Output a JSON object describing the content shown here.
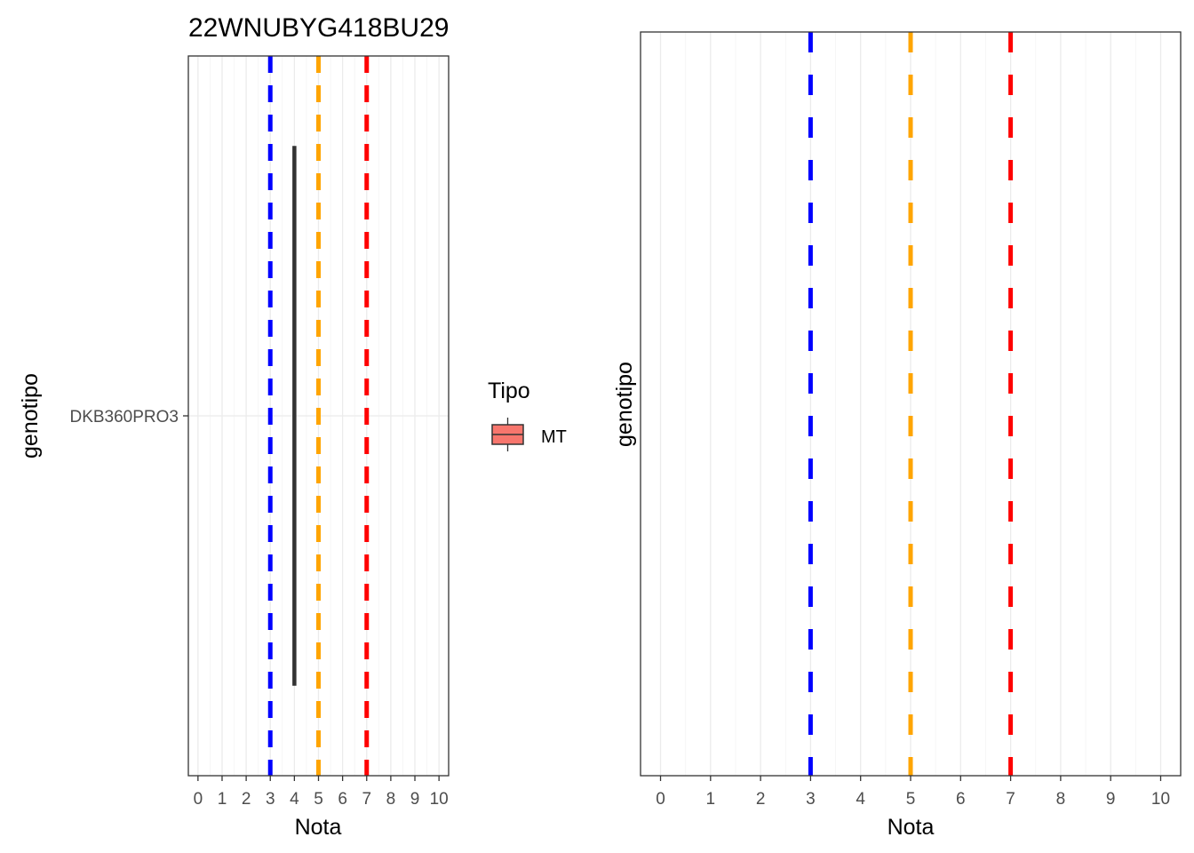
{
  "chart_data": [
    {
      "type": "boxplot",
      "title": "22WNUBYG418BU29",
      "xlabel": "Nota",
      "ylabel": "genotipo",
      "xlim": [
        -0.4,
        10.4
      ],
      "x_ticks": [
        "0",
        "1",
        "2",
        "3",
        "4",
        "5",
        "6",
        "7",
        "8",
        "9",
        "10"
      ],
      "categories": [
        "DKB360PRO3"
      ],
      "series": [
        {
          "category": "DKB360PRO3",
          "group": "MT",
          "min": 4,
          "q1": 4,
          "median": 4,
          "q3": 4,
          "max": 4
        }
      ],
      "reference_lines": [
        {
          "x": 3,
          "color": "#0000ff",
          "style": "dashed"
        },
        {
          "x": 5,
          "color": "#ffa500",
          "style": "dashed"
        },
        {
          "x": 7,
          "color": "#ff0000",
          "style": "dashed"
        }
      ],
      "grid": true,
      "legend": {
        "title": "Tipo",
        "position": "right",
        "items": [
          {
            "label": "MT",
            "fill": "#f8766d"
          }
        ]
      }
    },
    {
      "type": "boxplot",
      "title": "",
      "xlabel": "Nota",
      "ylabel": "genotipo",
      "xlim": [
        -0.4,
        10.4
      ],
      "x_ticks": [
        "0",
        "1",
        "2",
        "3",
        "4",
        "5",
        "6",
        "7",
        "8",
        "9",
        "10"
      ],
      "categories": [],
      "series": [],
      "reference_lines": [
        {
          "x": 3,
          "color": "#0000ff",
          "style": "dashed"
        },
        {
          "x": 5,
          "color": "#ffa500",
          "style": "dashed"
        },
        {
          "x": 7,
          "color": "#ff0000",
          "style": "dashed"
        }
      ],
      "grid": true
    }
  ]
}
